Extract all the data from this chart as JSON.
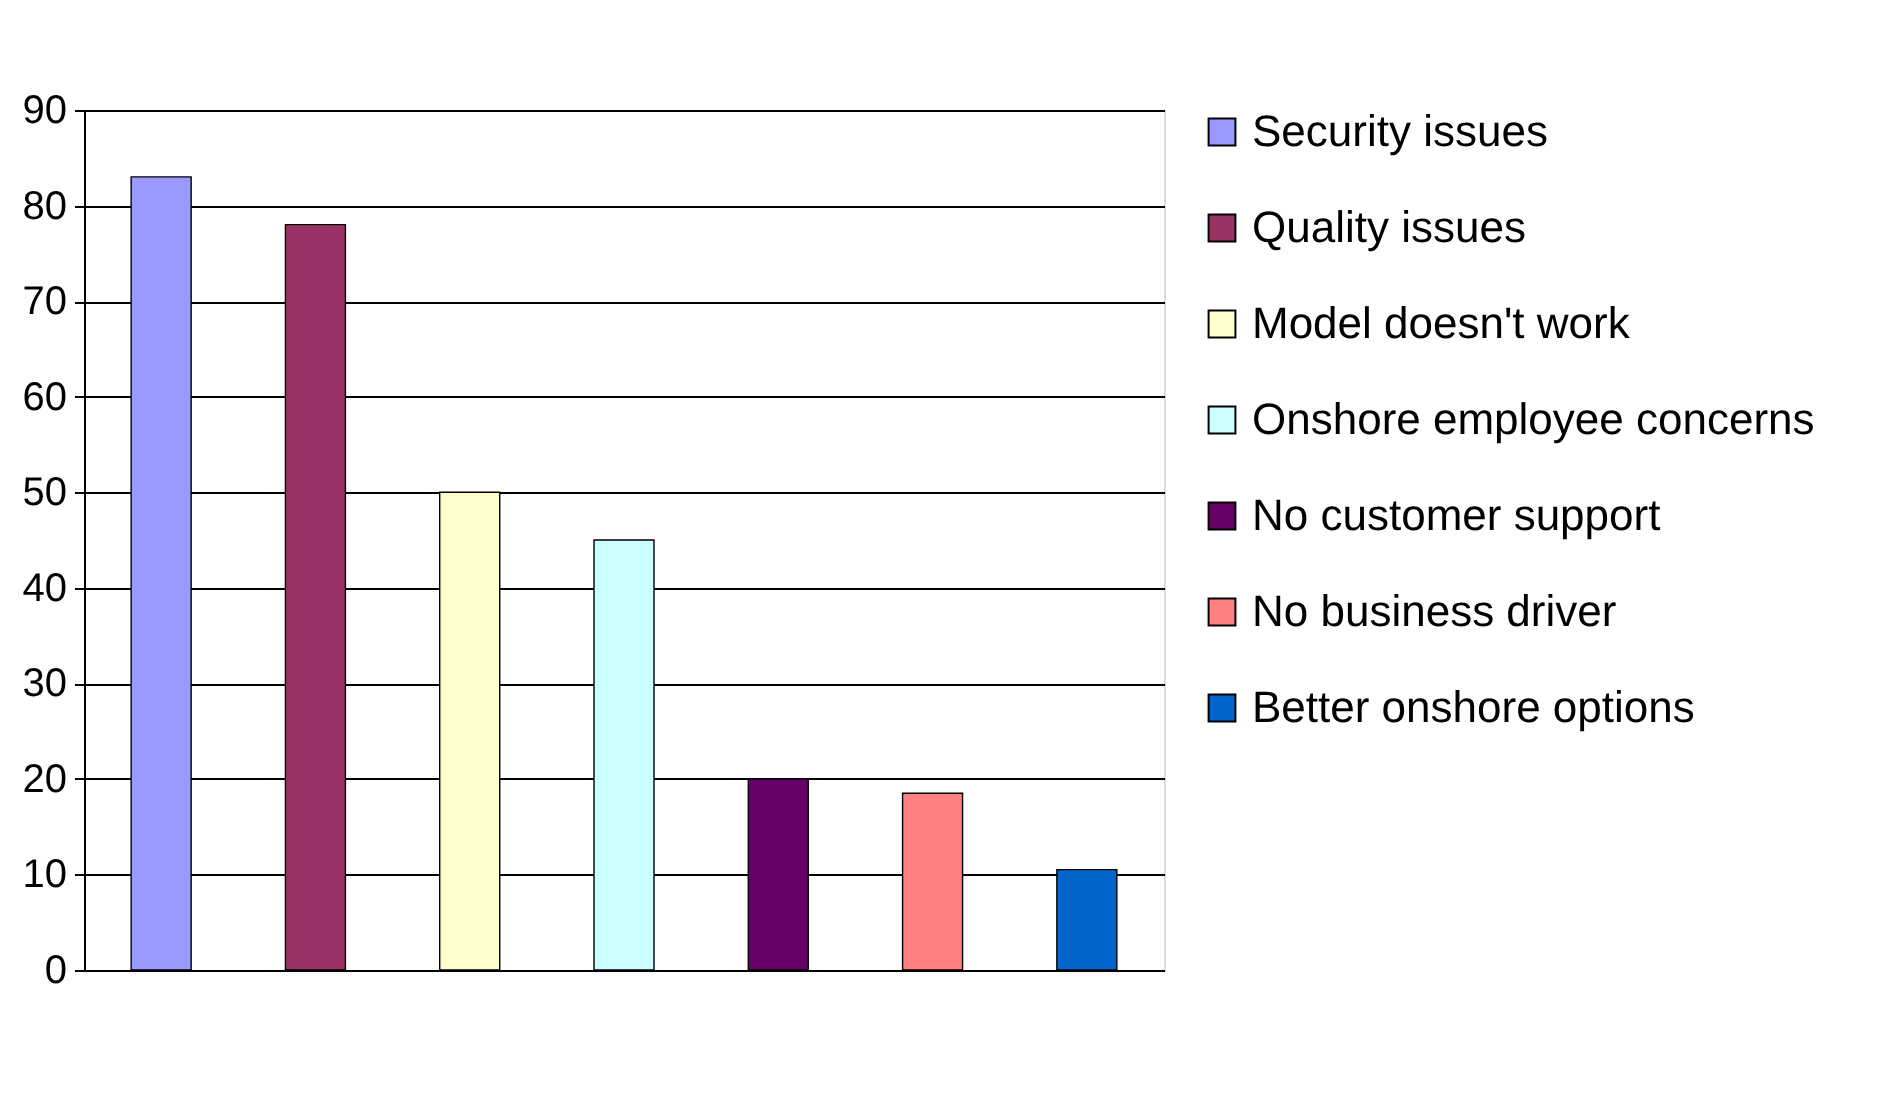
{
  "chart_data": {
    "type": "bar",
    "categories": [
      null,
      null,
      null,
      null,
      null,
      null,
      null
    ],
    "series": [
      {
        "name": "Security issues",
        "color": "#9999ff",
        "values": [
          83,
          null,
          null,
          null,
          null,
          null,
          null
        ]
      },
      {
        "name": "Quality issues",
        "color": "#993366",
        "values": [
          null,
          78,
          null,
          null,
          null,
          null,
          null
        ]
      },
      {
        "name": "Model doesn't work",
        "color": "#ffffcc",
        "values": [
          null,
          null,
          50,
          null,
          null,
          null,
          null
        ]
      },
      {
        "name": "Onshore employee concerns",
        "color": "#ccffff",
        "values": [
          null,
          null,
          null,
          45,
          null,
          null,
          null
        ]
      },
      {
        "name": "No customer support",
        "color": "#660066",
        "values": [
          null,
          null,
          null,
          null,
          20,
          null,
          null
        ]
      },
      {
        "name": "No business driver",
        "color": "#ff8080",
        "values": [
          null,
          null,
          null,
          null,
          null,
          18.5,
          null
        ]
      },
      {
        "name": "Better onshore options",
        "color": "#0066cc",
        "values": [
          null,
          null,
          null,
          null,
          null,
          null,
          10.5
        ]
      }
    ],
    "ylim": [
      0,
      90
    ],
    "yticks": [
      0,
      10,
      20,
      30,
      40,
      50,
      60,
      70,
      80,
      90
    ],
    "grid": "y",
    "legend": "right"
  }
}
